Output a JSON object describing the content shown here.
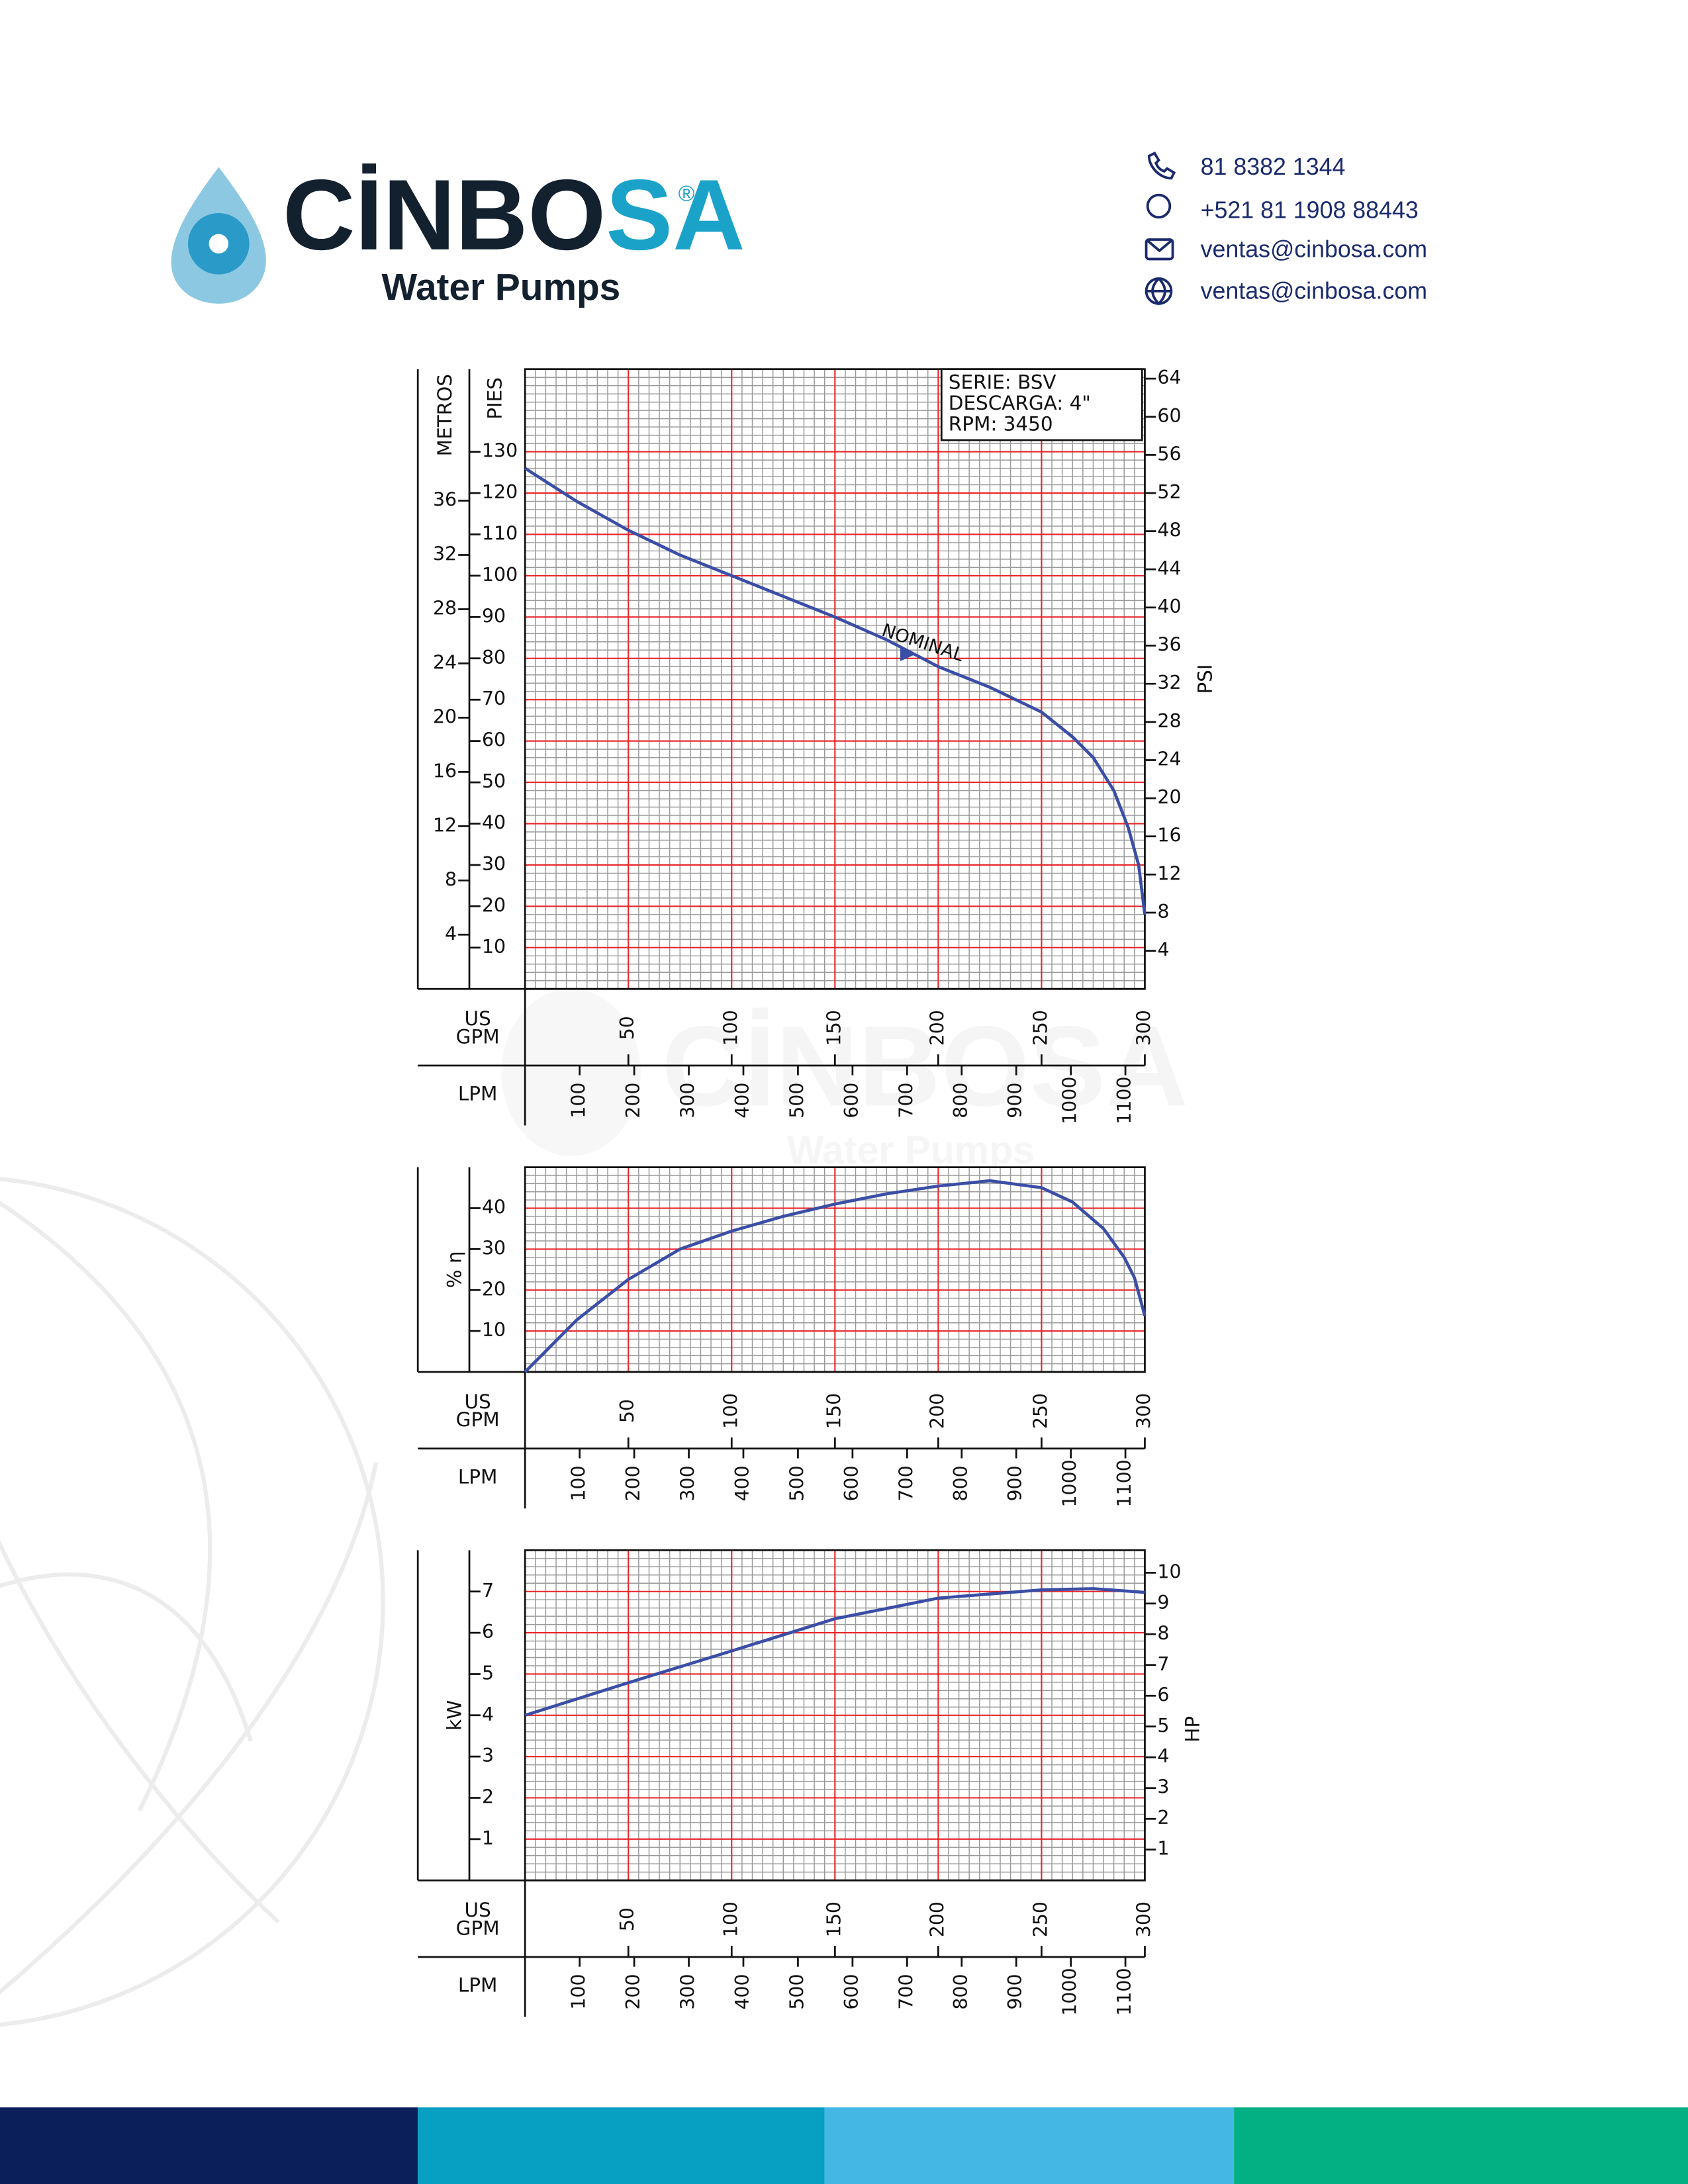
{
  "header": {
    "logo": {
      "brand_dark": "CİNBO",
      "brand_accent": "SA",
      "mark": "®",
      "tagline": "Water Pumps"
    },
    "contacts": [
      "81 8382 1344",
      "+521 81 1908 88443",
      "ventas@cinbosa.com",
      "ventas@cinbosa.com"
    ]
  },
  "watermark": {
    "brand": "CİNBOSA",
    "tagline": "Water Pumps"
  },
  "chart_data": [
    {
      "type": "line",
      "info": [
        "SERIE:  BSV",
        "DESCARGA:  4\"",
        "RPM:  3450"
      ],
      "y_label": "PIES",
      "y3_label": "METROS",
      "y2_label": "PSI",
      "x_label": [
        "US",
        "GPM"
      ],
      "x2_label": "LPM",
      "x": [
        0,
        25,
        50,
        75,
        100,
        125,
        150,
        175,
        200,
        225,
        250,
        265,
        275,
        285,
        292,
        297,
        300
      ],
      "series": [
        {
          "color": "#3a4ea6",
          "values": [
            126,
            118,
            111,
            105,
            100,
            95,
            90,
            84.5,
            78,
            73,
            67,
            61,
            56,
            48,
            39,
            30,
            18
          ]
        }
      ],
      "annotations": [
        {
          "text": "NOMINAL",
          "x": 185,
          "y": 81
        }
      ],
      "xlim": [
        0,
        300
      ],
      "xticks": [
        50,
        100,
        150,
        200,
        250,
        300
      ],
      "x2lim": [
        0,
        1135.6
      ],
      "x2ticks": [
        100,
        200,
        300,
        400,
        500,
        600,
        700,
        800,
        900,
        1000,
        1100
      ],
      "ylim": [
        0,
        150
      ],
      "yticks": [
        10,
        20,
        30,
        40,
        50,
        60,
        70,
        80,
        90,
        100,
        110,
        120,
        130
      ],
      "y2lim": [
        0,
        65
      ],
      "y2ticks": [
        4,
        8,
        12,
        16,
        20,
        24,
        28,
        32,
        36,
        40,
        44,
        48,
        52,
        56,
        60,
        64
      ],
      "y3lim": [
        0,
        45.7
      ],
      "y3ticks": [
        4,
        8,
        12,
        16,
        20,
        24,
        28,
        32,
        36
      ],
      "grid": true
    },
    {
      "type": "line",
      "y_label": "% η",
      "x_label": [
        "US",
        "GPM"
      ],
      "x2_label": "LPM",
      "x": [
        0,
        25,
        50,
        75,
        100,
        125,
        150,
        175,
        200,
        225,
        250,
        265,
        280,
        290,
        295,
        300
      ],
      "series": [
        {
          "color": "#3a4ea6",
          "values": [
            0,
            12.7,
            22.6,
            30,
            34.4,
            38,
            41,
            43.5,
            45.4,
            46.7,
            45,
            41.5,
            35,
            28,
            23,
            13.7
          ]
        }
      ],
      "xlim": [
        0,
        300
      ],
      "xticks": [
        50,
        100,
        150,
        200,
        250,
        300
      ],
      "x2lim": [
        0,
        1135.6
      ],
      "x2ticks": [
        100,
        200,
        300,
        400,
        500,
        600,
        700,
        800,
        900,
        1000,
        1100
      ],
      "ylim": [
        0,
        50
      ],
      "yticks": [
        10,
        20,
        30,
        40
      ],
      "grid": true
    },
    {
      "type": "line",
      "y_label": "kW",
      "y2_label": "HP",
      "x_label": [
        "US",
        "GPM"
      ],
      "x2_label": "LPM",
      "x": [
        0,
        50,
        100,
        150,
        200,
        250,
        275,
        300
      ],
      "series": [
        {
          "color": "#3a4ea6",
          "values": [
            4,
            4.79,
            5.56,
            6.34,
            6.84,
            7.04,
            7.07,
            6.98
          ]
        }
      ],
      "xlim": [
        0,
        300
      ],
      "xticks": [
        50,
        100,
        150,
        200,
        250,
        300
      ],
      "x2lim": [
        0,
        1135.6
      ],
      "x2ticks": [
        100,
        200,
        300,
        400,
        500,
        600,
        700,
        800,
        900,
        1000,
        1100
      ],
      "ylim": [
        0,
        8
      ],
      "yticks": [
        1,
        2,
        3,
        4,
        5,
        6,
        7
      ],
      "y2lim": [
        0,
        10.73
      ],
      "y2ticks": [
        1,
        2,
        3,
        4,
        5,
        6,
        7,
        8,
        9,
        10
      ],
      "grid": true
    }
  ]
}
